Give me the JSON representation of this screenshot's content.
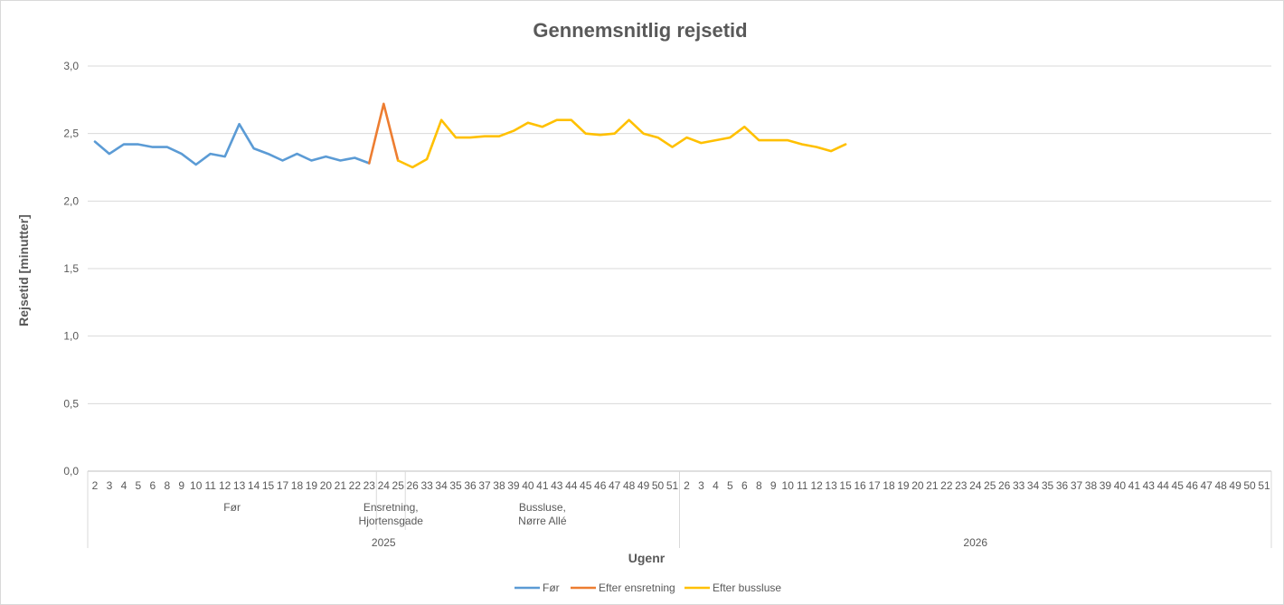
{
  "chart_data": {
    "type": "line",
    "title": "Gennemsnitlig rejsetid",
    "ylabel": "Rejsetid [minutter]",
    "xlabel": "Ugenr",
    "ylim": [
      0,
      3
    ],
    "ytick_labels": [
      "0,0",
      "0,5",
      "1,0",
      "1,5",
      "2,0",
      "2,5",
      "3,0"
    ],
    "ytick_values": [
      0,
      0.5,
      1.0,
      1.5,
      2.0,
      2.5,
      3.0
    ],
    "grid": true,
    "legend_position": "bottom",
    "categories": [
      "2",
      "3",
      "4",
      "5",
      "6",
      "8",
      "9",
      "10",
      "11",
      "12",
      "13",
      "14",
      "15",
      "17",
      "18",
      "19",
      "20",
      "21",
      "22",
      "23",
      "24",
      "25",
      "26",
      "33",
      "34",
      "35",
      "36",
      "37",
      "38",
      "39",
      "40",
      "41",
      "43",
      "44",
      "45",
      "46",
      "47",
      "48",
      "49",
      "50",
      "51",
      "2",
      "3",
      "4",
      "5",
      "6",
      "8",
      "9",
      "10",
      "11",
      "12",
      "13",
      "15",
      "16",
      "17",
      "18",
      "19",
      "20",
      "21",
      "22",
      "23",
      "24",
      "25",
      "26",
      "33",
      "34",
      "35",
      "36",
      "37",
      "38",
      "39",
      "40",
      "41",
      "43",
      "44",
      "45",
      "46",
      "47",
      "48",
      "49",
      "50",
      "51"
    ],
    "year_groups": [
      {
        "label": "2025",
        "start": 0,
        "end": 40
      },
      {
        "label": "2026",
        "start": 41,
        "end": 81
      }
    ],
    "period_groups": [
      {
        "label_lines": [
          "Før"
        ],
        "start": 0,
        "end": 19
      },
      {
        "label_lines": [
          "Ensretning,",
          "Hjortensgade"
        ],
        "start": 20,
        "end": 21
      },
      {
        "label_lines": [
          "Bussluse,",
          "Nørre Allé"
        ],
        "start": 22,
        "end": 40
      }
    ],
    "series": [
      {
        "name": "Før",
        "color": "#5b9bd5",
        "points": [
          [
            0,
            2.44
          ],
          [
            1,
            2.35
          ],
          [
            2,
            2.42
          ],
          [
            3,
            2.42
          ],
          [
            4,
            2.4
          ],
          [
            5,
            2.4
          ],
          [
            6,
            2.35
          ],
          [
            7,
            2.27
          ],
          [
            8,
            2.35
          ],
          [
            9,
            2.33
          ],
          [
            10,
            2.57
          ],
          [
            11,
            2.39
          ],
          [
            12,
            2.35
          ],
          [
            13,
            2.3
          ],
          [
            14,
            2.35
          ],
          [
            15,
            2.3
          ],
          [
            16,
            2.33
          ],
          [
            17,
            2.3
          ],
          [
            18,
            2.32
          ],
          [
            19,
            2.28
          ]
        ]
      },
      {
        "name": "Efter ensretning",
        "color": "#ed7d31",
        "points": [
          [
            19,
            2.28
          ],
          [
            20,
            2.72
          ],
          [
            21,
            2.3
          ]
        ]
      },
      {
        "name": "Efter bussluse",
        "color": "#ffc000",
        "points": [
          [
            21,
            2.3
          ],
          [
            22,
            2.25
          ],
          [
            23,
            2.31
          ],
          [
            24,
            2.6
          ],
          [
            25,
            2.47
          ],
          [
            26,
            2.47
          ],
          [
            27,
            2.48
          ],
          [
            28,
            2.48
          ],
          [
            29,
            2.52
          ],
          [
            30,
            2.58
          ],
          [
            31,
            2.55
          ],
          [
            32,
            2.6
          ],
          [
            33,
            2.6
          ],
          [
            34,
            2.5
          ],
          [
            35,
            2.49
          ],
          [
            36,
            2.5
          ],
          [
            37,
            2.6
          ],
          [
            38,
            2.5
          ],
          [
            39,
            2.47
          ],
          [
            40,
            2.4
          ],
          [
            41,
            2.47
          ],
          [
            42,
            2.43
          ],
          [
            43,
            2.45
          ],
          [
            44,
            2.47
          ],
          [
            45,
            2.55
          ],
          [
            46,
            2.45
          ],
          [
            47,
            2.45
          ],
          [
            48,
            2.45
          ],
          [
            49,
            2.42
          ],
          [
            50,
            2.4
          ],
          [
            51,
            2.37
          ],
          [
            52,
            2.42
          ]
        ]
      }
    ]
  }
}
